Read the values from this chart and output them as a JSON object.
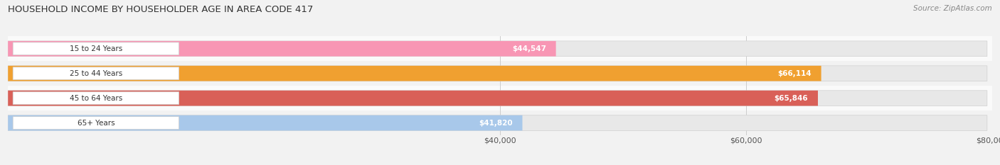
{
  "title": "HOUSEHOLD INCOME BY HOUSEHOLDER AGE IN AREA CODE 417",
  "source": "Source: ZipAtlas.com",
  "categories": [
    "15 to 24 Years",
    "25 to 44 Years",
    "45 to 64 Years",
    "65+ Years"
  ],
  "values": [
    44547,
    66114,
    65846,
    41820
  ],
  "labels": [
    "$44,547",
    "$66,114",
    "$65,846",
    "$41,820"
  ],
  "bar_colors": [
    "#f896b4",
    "#f0a030",
    "#d96058",
    "#a8c8ea"
  ],
  "track_color": "#e8e8e8",
  "track_edge_color": "#d0d0d0",
  "background_color": "#f2f2f2",
  "row_colors": [
    "#fafafa",
    "#f2f2f2",
    "#fafafa",
    "#f2f2f2"
  ],
  "xlim_max": 80000,
  "xticks": [
    40000,
    60000,
    80000
  ],
  "xticklabels": [
    "$40,000",
    "$60,000",
    "$80,000"
  ],
  "bar_height": 0.62,
  "label_color_inside": "#ffffff",
  "label_color_outside": "#555555",
  "cat_label_color": "#333333",
  "grid_color": "#cccccc",
  "title_color": "#333333",
  "source_color": "#888888"
}
